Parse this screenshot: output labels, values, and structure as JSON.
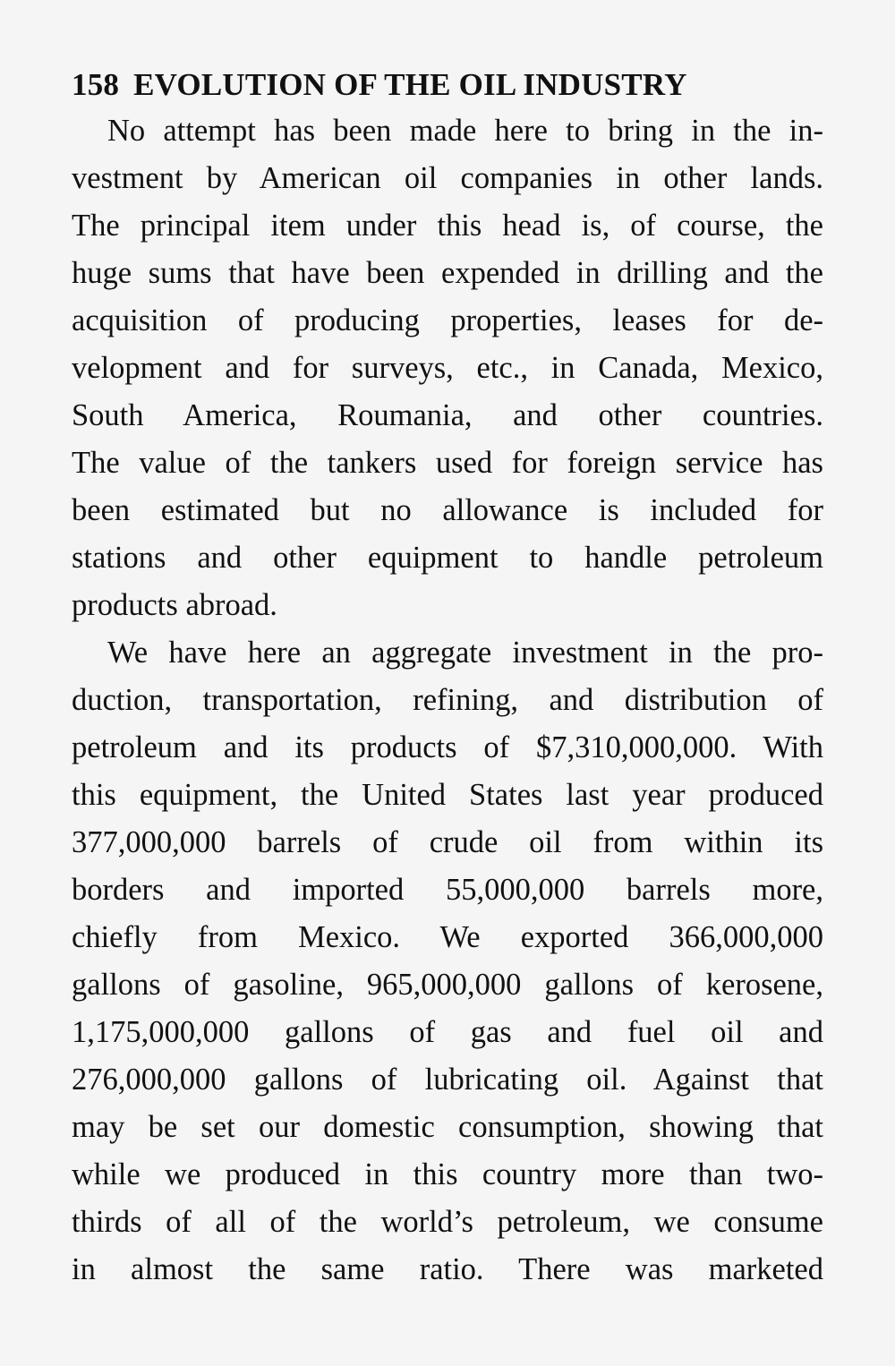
{
  "header": {
    "page_number": "158",
    "title": "EVOLUTION OF THE OIL INDUSTRY"
  },
  "paragraphs": [
    {
      "lines": [
        "No attempt has been made here to bring in the in-",
        "vestment by American oil companies in other lands.",
        "The principal item under this head is, of course, the",
        "huge sums that have been expended in drilling and the",
        "acquisition of producing properties, leases for de-",
        "velopment and for surveys, etc., in Canada, Mexico,",
        "South America, Roumania, and other countries.",
        "The value of the tankers used for foreign service has",
        "been estimated but no allowance is included for",
        "stations and other equipment to handle petroleum",
        "products abroad."
      ]
    },
    {
      "lines": [
        "We have here an aggregate investment in the pro-",
        "duction, transportation, refining, and distribution of",
        "petroleum and its products of $7,310,000,000. With",
        "this equipment, the United States last year produced",
        "377,000,000 barrels of crude oil from within its",
        "borders and imported 55,000,000 barrels more,",
        "chiefly from Mexico. We exported 366,000,000",
        "gallons of gasoline, 965,000,000 gallons of kerosene,",
        "1,175,000,000 gallons of gas and fuel oil and",
        "276,000,000 gallons of lubricating oil. Against that",
        "may be set our domestic consumption, showing that",
        "while we produced in this country more than two-",
        "thirds of all of the world’s petroleum, we consume",
        "in almost the same ratio. There was marketed"
      ]
    }
  ]
}
